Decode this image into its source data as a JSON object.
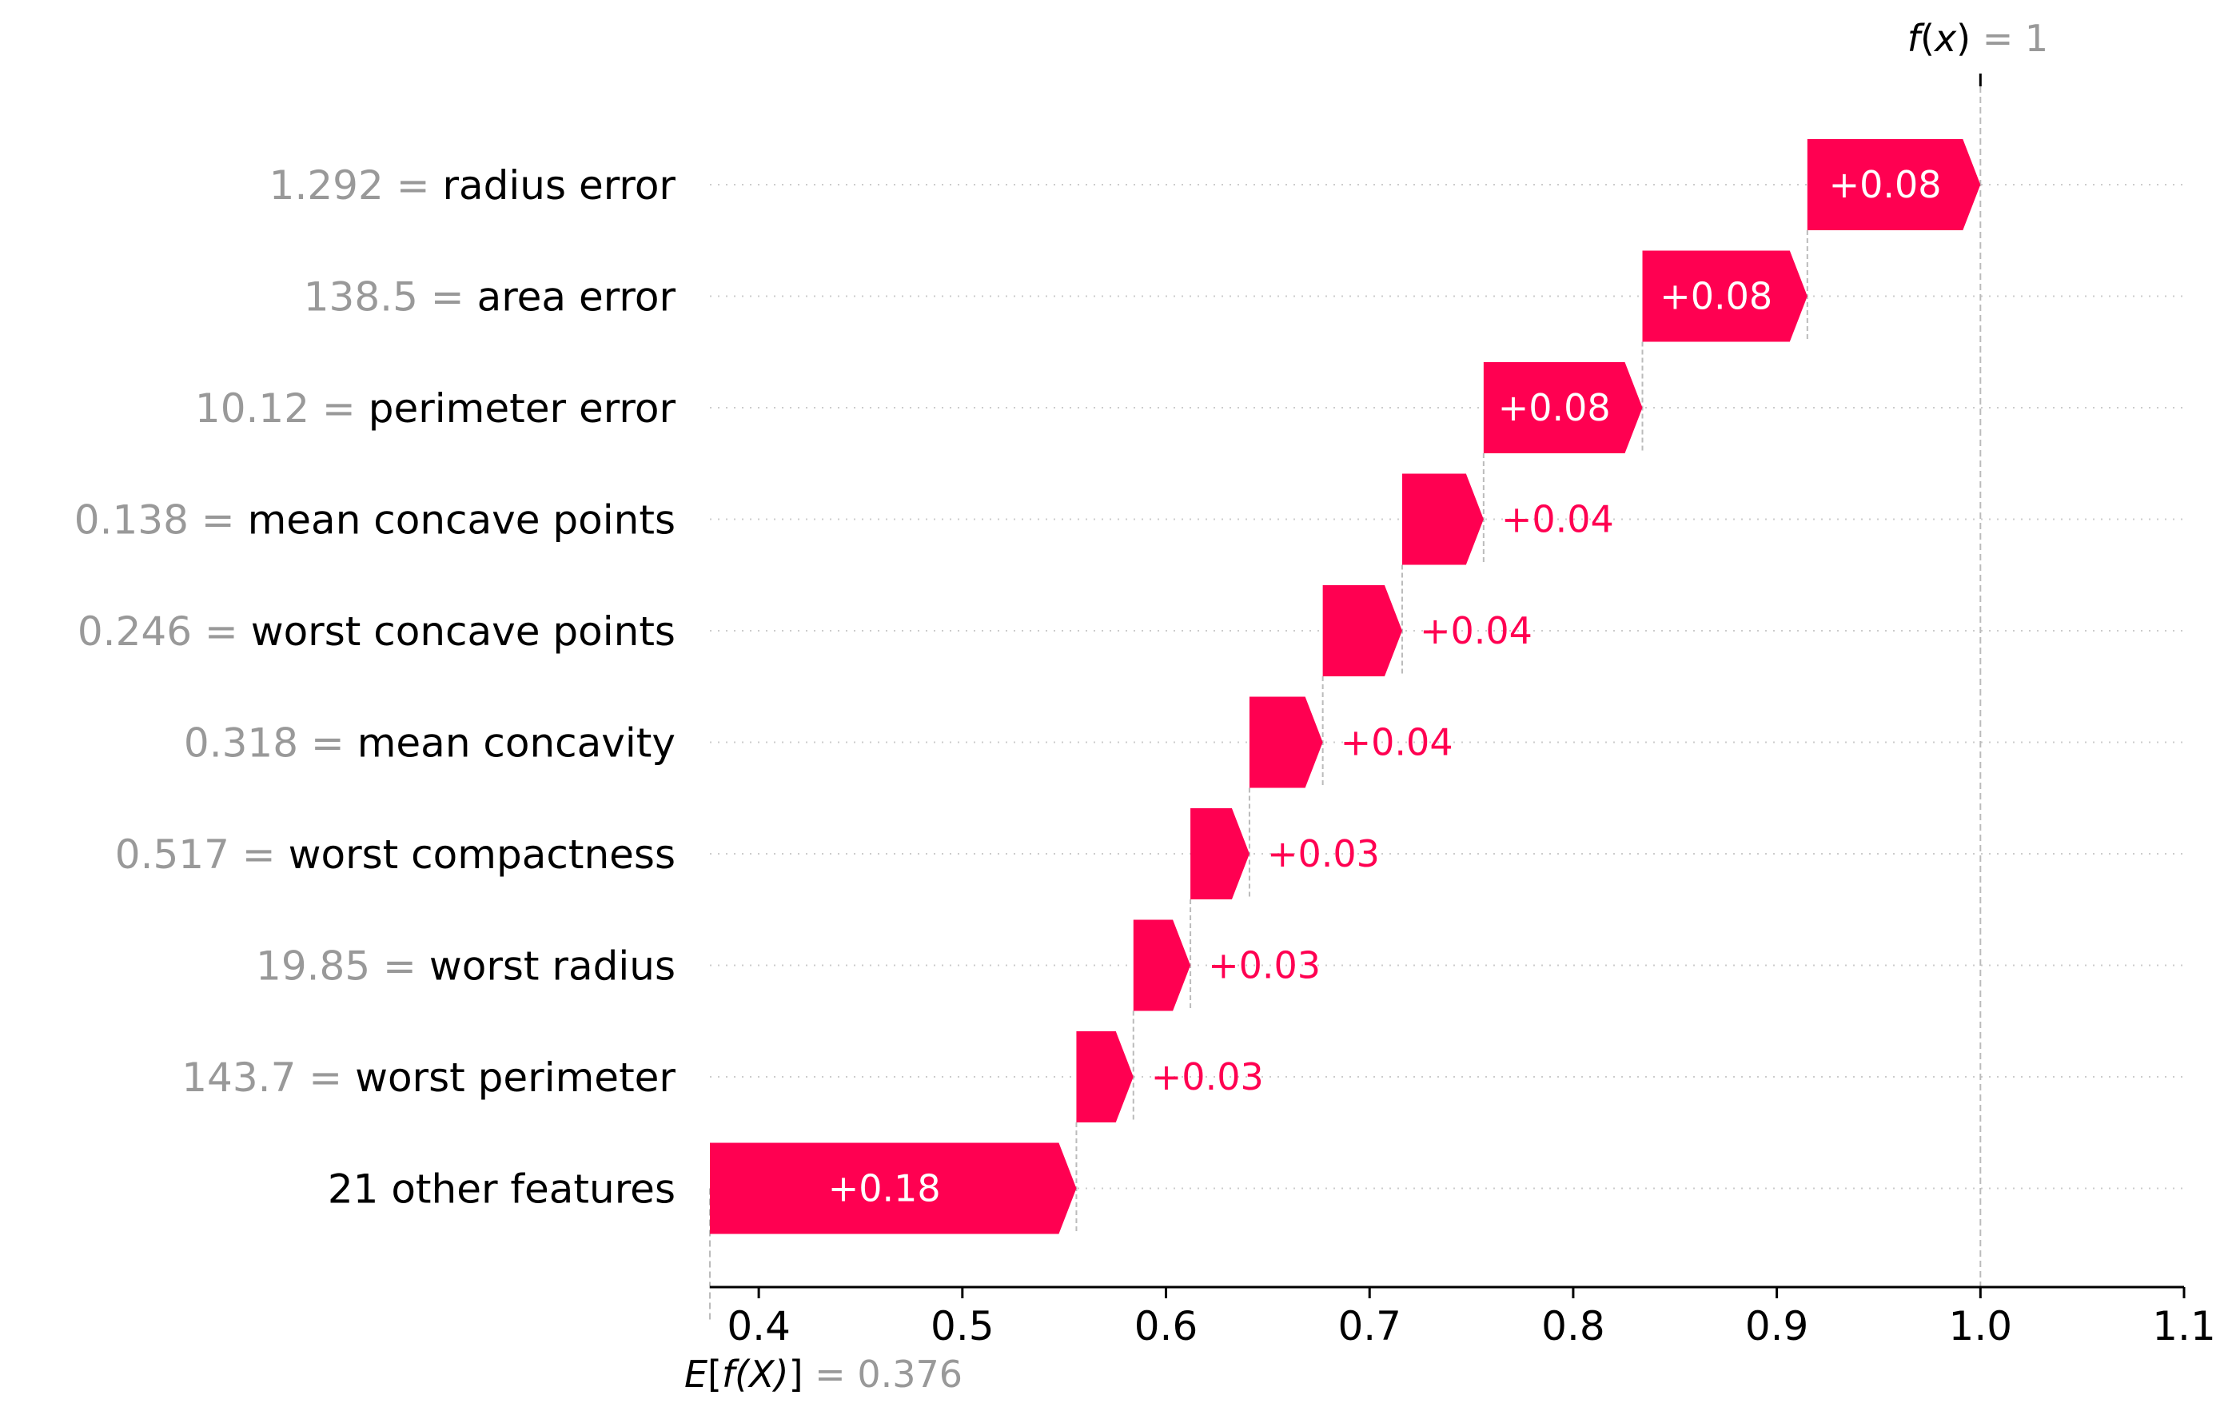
{
  "chart_data": {
    "type": "waterfall",
    "fx_label": {
      "prefix": "f",
      "var": "x",
      "sep": " = ",
      "value": "1"
    },
    "ex_label": {
      "prefix": "E",
      "var": "f(X)",
      "sep": " = ",
      "value": "0.376"
    },
    "base_value": 0.376,
    "final_value": 1.0,
    "xlim": [
      0.376,
      1.1
    ],
    "xticks": [
      {
        "value": 0.4,
        "label": "0.4"
      },
      {
        "value": 0.5,
        "label": "0.5"
      },
      {
        "value": 0.6,
        "label": "0.6"
      },
      {
        "value": 0.7,
        "label": "0.7"
      },
      {
        "value": 0.8,
        "label": "0.8"
      },
      {
        "value": 0.9,
        "label": "0.9"
      },
      {
        "value": 1.0,
        "label": "1.0"
      },
      {
        "value": 1.1,
        "label": "1.1"
      }
    ],
    "features": [
      {
        "value": "1.292 = ",
        "name": "radius error",
        "start": 0.915,
        "end": 1.0,
        "label": "+0.08"
      },
      {
        "value": "138.5 = ",
        "name": "area error",
        "start": 0.834,
        "end": 0.915,
        "label": "+0.08"
      },
      {
        "value": "10.12 = ",
        "name": "perimeter error",
        "start": 0.756,
        "end": 0.834,
        "label": "+0.08"
      },
      {
        "value": "0.138 = ",
        "name": "mean concave points",
        "start": 0.716,
        "end": 0.756,
        "label": "+0.04"
      },
      {
        "value": "0.246 = ",
        "name": "worst concave points",
        "start": 0.677,
        "end": 0.716,
        "label": "+0.04"
      },
      {
        "value": "0.318 = ",
        "name": "mean concavity",
        "start": 0.641,
        "end": 0.677,
        "label": "+0.04"
      },
      {
        "value": "0.517 = ",
        "name": "worst compactness",
        "start": 0.612,
        "end": 0.641,
        "label": "+0.03"
      },
      {
        "value": "19.85 = ",
        "name": "worst radius",
        "start": 0.584,
        "end": 0.612,
        "label": "+0.03"
      },
      {
        "value": "143.7 = ",
        "name": "worst perimeter",
        "start": 0.556,
        "end": 0.584,
        "label": "+0.03"
      },
      {
        "value": "",
        "name": "21 other features",
        "start": 0.376,
        "end": 0.556,
        "label": "+0.18"
      }
    ],
    "colors": {
      "positive": "#ff0051",
      "value_text": "#999999",
      "name_text": "#000000",
      "inside_label": "#ffffff",
      "gridline": "#cccccc",
      "axis": "#000000"
    },
    "grid": true,
    "legend": "none"
  }
}
